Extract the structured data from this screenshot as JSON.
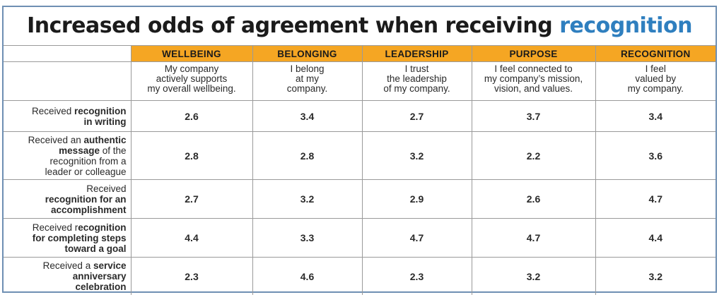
{
  "title": {
    "main": "Increased odds of agreement when receiving ",
    "accent": "recognition"
  },
  "chart_data": {
    "type": "table",
    "columns": [
      {
        "header": "WELLBEING",
        "description": "My company\nactively supports\nmy overall wellbeing."
      },
      {
        "header": "BELONGING",
        "description": "I belong\nat my\ncompany."
      },
      {
        "header": "LEADERSHIP",
        "description": "I trust\nthe leadership\nof my company."
      },
      {
        "header": "PURPOSE",
        "description": "I feel connected  to\nmy company’s mission,\nvision, and values."
      },
      {
        "header": "RECOGNITION",
        "description": "I feel\nvalued by\nmy company."
      }
    ],
    "rows": [
      {
        "label_parts": [
          {
            "t": "Received ",
            "b": false
          },
          {
            "t": "recognition\nin writing",
            "b": true
          }
        ],
        "values": [
          2.6,
          3.4,
          2.7,
          3.7,
          3.4
        ]
      },
      {
        "label_parts": [
          {
            "t": "Received an ",
            "b": false
          },
          {
            "t": "authentic\nmessage",
            "b": true
          },
          {
            "t": " of the\nrecognition from a\nleader or colleague",
            "b": false
          }
        ],
        "values": [
          2.8,
          2.8,
          3.2,
          2.2,
          3.6
        ]
      },
      {
        "label_parts": [
          {
            "t": "Received\n",
            "b": false
          },
          {
            "t": "recognition for an\naccomplishment",
            "b": true
          }
        ],
        "values": [
          2.7,
          3.2,
          2.9,
          2.6,
          4.7
        ]
      },
      {
        "label_parts": [
          {
            "t": "Received r",
            "b": false
          },
          {
            "t": "ecognition\nfor completing steps\ntoward a goal",
            "b": true
          }
        ],
        "values": [
          4.4,
          3.3,
          4.7,
          4.7,
          4.4
        ]
      },
      {
        "label_parts": [
          {
            "t": "Received a ",
            "b": false
          },
          {
            "t": "service\nanniversary\ncelebration",
            "b": true
          }
        ],
        "values": [
          2.3,
          4.6,
          2.3,
          3.2,
          3.2
        ]
      }
    ]
  },
  "colors": {
    "header_bg": "#f5a623",
    "accent": "#2f7fbf",
    "border": "#6e8fb3",
    "grid": "#9a9a9a"
  }
}
